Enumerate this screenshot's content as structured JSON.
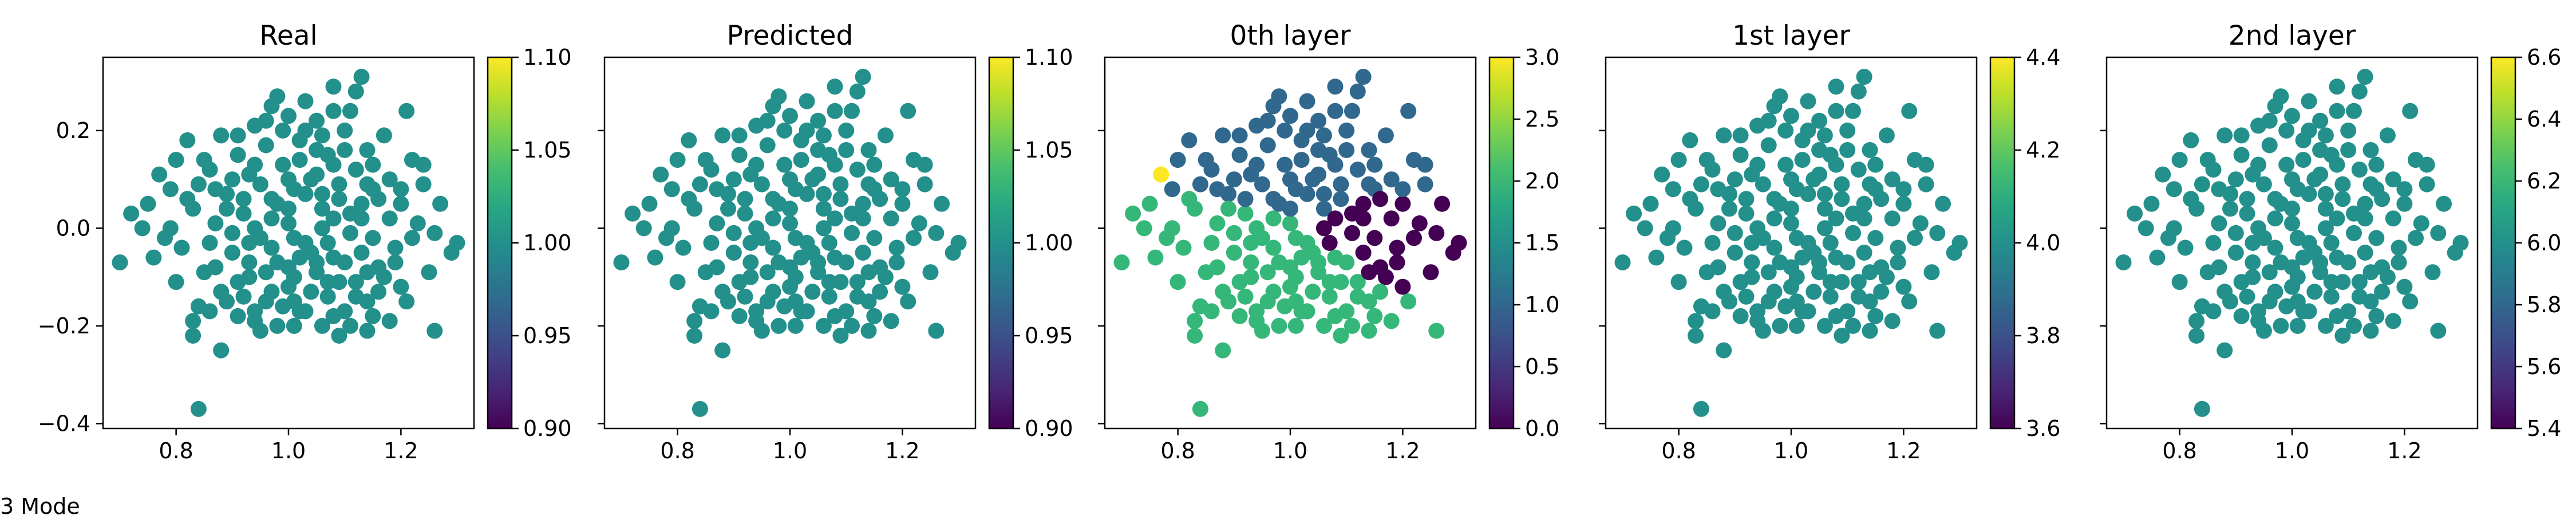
{
  "caption": "3 Mode",
  "colormap": "viridis",
  "chart_data": [
    {
      "type": "scatter",
      "title": "Real",
      "xlim": [
        0.67,
        1.33
      ],
      "ylim": [
        -0.41,
        0.35
      ],
      "xticks": [
        0.8,
        1.0,
        1.2
      ],
      "yticks": [
        -0.4,
        -0.2,
        0.0,
        0.2
      ],
      "colorbar": {
        "range": [
          0.9,
          1.1
        ],
        "ticks": [
          0.9,
          0.95,
          1.0,
          1.05,
          1.1
        ]
      },
      "color_rule": "constant",
      "constant_value": 1.0
    },
    {
      "type": "scatter",
      "title": "Predicted",
      "xlim": [
        0.67,
        1.33
      ],
      "ylim": [
        -0.41,
        0.35
      ],
      "xticks": [
        0.8,
        1.0,
        1.2
      ],
      "yticks": [],
      "colorbar": {
        "range": [
          0.9,
          1.1
        ],
        "ticks": [
          0.9,
          0.95,
          1.0,
          1.05,
          1.1
        ]
      },
      "color_rule": "constant",
      "constant_value": 1.0
    },
    {
      "type": "scatter",
      "title": "0th layer",
      "xlim": [
        0.67,
        1.33
      ],
      "ylim": [
        -0.41,
        0.35
      ],
      "xticks": [
        0.8,
        1.0,
        1.2
      ],
      "yticks": [],
      "colorbar": {
        "range": [
          0.0,
          3.0
        ],
        "ticks": [
          0.0,
          0.5,
          1.0,
          1.5,
          2.0,
          2.5,
          3.0
        ]
      },
      "color_rule": "sector"
    },
    {
      "type": "scatter",
      "title": "1st layer",
      "xlim": [
        0.67,
        1.33
      ],
      "ylim": [
        -0.41,
        0.35
      ],
      "xticks": [
        0.8,
        1.0,
        1.2
      ],
      "yticks": [],
      "colorbar": {
        "range": [
          3.6,
          4.4
        ],
        "ticks": [
          3.6,
          3.8,
          4.0,
          4.2,
          4.4
        ]
      },
      "color_rule": "constant",
      "constant_value": 4.0
    },
    {
      "type": "scatter",
      "title": "2nd layer",
      "xlim": [
        0.67,
        1.33
      ],
      "ylim": [
        -0.41,
        0.35
      ],
      "xticks": [
        0.8,
        1.0,
        1.2
      ],
      "yticks": [],
      "colorbar": {
        "range": [
          5.4,
          6.6
        ],
        "ticks": [
          5.4,
          5.6,
          5.8,
          6.0,
          6.2,
          6.4,
          6.6
        ]
      },
      "color_rule": "constant",
      "constant_value": 6.0
    }
  ],
  "points": [
    [
      1.08,
      0.29
    ],
    [
      0.98,
      0.27
    ],
    [
      1.13,
      0.31
    ],
    [
      1.21,
      0.24
    ],
    [
      1.0,
      0.23
    ],
    [
      1.05,
      0.22
    ],
    [
      0.94,
      0.21
    ],
    [
      1.1,
      0.2
    ],
    [
      0.88,
      0.19
    ],
    [
      1.17,
      0.19
    ],
    [
      0.82,
      0.18
    ],
    [
      1.02,
      0.18
    ],
    [
      0.96,
      0.17
    ],
    [
      1.14,
      0.16
    ],
    [
      0.91,
      0.15
    ],
    [
      1.07,
      0.15
    ],
    [
      0.8,
      0.14
    ],
    [
      1.22,
      0.14
    ],
    [
      1.24,
      0.13
    ],
    [
      0.99,
      0.13
    ],
    [
      0.86,
      0.12
    ],
    [
      1.12,
      0.12
    ],
    [
      0.93,
      0.11
    ],
    [
      1.04,
      0.1
    ],
    [
      0.77,
      0.11
    ],
    [
      1.18,
      0.1
    ],
    [
      0.84,
      0.09
    ],
    [
      1.01,
      0.08
    ],
    [
      1.15,
      0.08
    ],
    [
      0.89,
      0.07
    ],
    [
      0.97,
      0.06
    ],
    [
      1.09,
      0.06
    ],
    [
      0.75,
      0.05
    ],
    [
      1.2,
      0.05
    ],
    [
      1.27,
      0.05
    ],
    [
      0.83,
      0.04
    ],
    [
      1.06,
      0.04
    ],
    [
      0.72,
      0.03
    ],
    [
      0.92,
      0.03
    ],
    [
      1.13,
      0.02
    ],
    [
      0.87,
      0.01
    ],
    [
      1.0,
      0.01
    ],
    [
      1.23,
      0.01
    ],
    [
      0.79,
      0.0
    ],
    [
      1.11,
      -0.01
    ],
    [
      0.95,
      -0.02
    ],
    [
      1.3,
      -0.03
    ],
    [
      1.03,
      -0.03
    ],
    [
      0.81,
      -0.04
    ],
    [
      1.19,
      -0.04
    ],
    [
      0.9,
      -0.05
    ],
    [
      1.29,
      -0.05
    ],
    [
      1.08,
      -0.06
    ],
    [
      0.76,
      -0.06
    ],
    [
      0.98,
      -0.07
    ],
    [
      0.7,
      -0.07
    ],
    [
      1.16,
      -0.08
    ],
    [
      0.85,
      -0.09
    ],
    [
      1.05,
      -0.09
    ],
    [
      1.25,
      -0.09
    ],
    [
      0.93,
      -0.1
    ],
    [
      1.12,
      -0.11
    ],
    [
      0.8,
      -0.11
    ],
    [
      1.0,
      -0.12
    ],
    [
      1.2,
      -0.12
    ],
    [
      0.88,
      -0.13
    ],
    [
      1.07,
      -0.14
    ],
    [
      0.96,
      -0.15
    ],
    [
      1.14,
      -0.15
    ],
    [
      0.84,
      -0.16
    ],
    [
      1.02,
      -0.17
    ],
    [
      1.1,
      -0.17
    ],
    [
      0.91,
      -0.18
    ],
    [
      0.83,
      -0.19
    ],
    [
      1.18,
      -0.19
    ],
    [
      0.98,
      -0.2
    ],
    [
      1.06,
      -0.2
    ],
    [
      1.26,
      -0.21
    ],
    [
      0.95,
      -0.21
    ],
    [
      0.83,
      -0.22
    ],
    [
      1.09,
      -0.22
    ],
    [
      1.14,
      -0.21
    ],
    [
      0.88,
      -0.25
    ],
    [
      0.84,
      -0.37
    ],
    [
      0.97,
      0.25
    ],
    [
      1.03,
      0.26
    ],
    [
      1.11,
      0.24
    ],
    [
      1.06,
      0.19
    ],
    [
      0.99,
      0.2
    ],
    [
      1.15,
      0.13
    ],
    [
      1.09,
      0.09
    ],
    [
      0.95,
      0.09
    ],
    [
      1.02,
      0.14
    ],
    [
      0.87,
      0.08
    ],
    [
      1.13,
      0.05
    ],
    [
      1.18,
      0.02
    ],
    [
      0.9,
      -0.01
    ],
    [
      1.06,
      0.0
    ],
    [
      0.97,
      0.02
    ],
    [
      1.04,
      -0.05
    ],
    [
      1.15,
      -0.02
    ],
    [
      0.93,
      -0.07
    ],
    [
      1.1,
      -0.07
    ],
    [
      1.01,
      -0.1
    ],
    [
      0.87,
      -0.08
    ],
    [
      1.17,
      -0.1
    ],
    [
      0.92,
      -0.14
    ],
    [
      1.12,
      -0.14
    ],
    [
      1.04,
      -0.13
    ],
    [
      0.99,
      -0.16
    ],
    [
      1.08,
      -0.18
    ],
    [
      0.94,
      -0.17
    ],
    [
      1.01,
      -0.2
    ],
    [
      1.15,
      -0.18
    ],
    [
      1.03,
      0.07
    ],
    [
      0.98,
      0.05
    ],
    [
      1.08,
      0.02
    ],
    [
      0.94,
      0.0
    ],
    [
      1.01,
      -0.02
    ],
    [
      1.07,
      -0.03
    ],
    [
      0.97,
      -0.04
    ],
    [
      1.11,
      0.03
    ],
    [
      0.89,
      0.04
    ],
    [
      1.05,
      0.11
    ],
    [
      0.92,
      0.06
    ],
    [
      1.16,
      0.06
    ],
    [
      1.0,
      0.04
    ],
    [
      1.05,
      -0.07
    ],
    [
      0.96,
      -0.09
    ],
    [
      1.09,
      -0.11
    ],
    [
      1.02,
      -0.06
    ],
    [
      0.91,
      -0.11
    ],
    [
      1.13,
      -0.05
    ],
    [
      0.86,
      -0.03
    ],
    [
      1.19,
      -0.07
    ],
    [
      1.0,
      0.1
    ],
    [
      1.08,
      0.13
    ],
    [
      0.94,
      0.13
    ],
    [
      1.1,
      0.16
    ],
    [
      1.2,
      0.08
    ],
    [
      0.85,
      0.14
    ],
    [
      0.82,
      0.06
    ],
    [
      0.78,
      -0.02
    ],
    [
      1.22,
      -0.02
    ],
    [
      0.86,
      -0.17
    ],
    [
      1.21,
      -0.15
    ],
    [
      1.03,
      -0.17
    ],
    [
      0.97,
      -0.13
    ],
    [
      1.11,
      -0.2
    ],
    [
      0.94,
      -0.19
    ],
    [
      1.05,
      0.16
    ],
    [
      0.9,
      0.1
    ],
    [
      1.14,
      0.09
    ],
    [
      1.24,
      0.09
    ],
    [
      0.79,
      0.08
    ],
    [
      1.26,
      -0.01
    ],
    [
      0.74,
      0.0
    ],
    [
      1.16,
      -0.13
    ],
    [
      0.89,
      -0.15
    ],
    [
      1.03,
      0.2
    ],
    [
      0.91,
      0.19
    ],
    [
      1.08,
      0.24
    ],
    [
      1.12,
      0.28
    ],
    [
      0.96,
      0.22
    ],
    [
      1.01,
      -0.15
    ],
    [
      1.07,
      -0.11
    ],
    [
      0.93,
      -0.03
    ],
    [
      1.14,
      -0.09
    ],
    [
      1.0,
      -0.08
    ],
    [
      1.06,
      0.07
    ]
  ]
}
